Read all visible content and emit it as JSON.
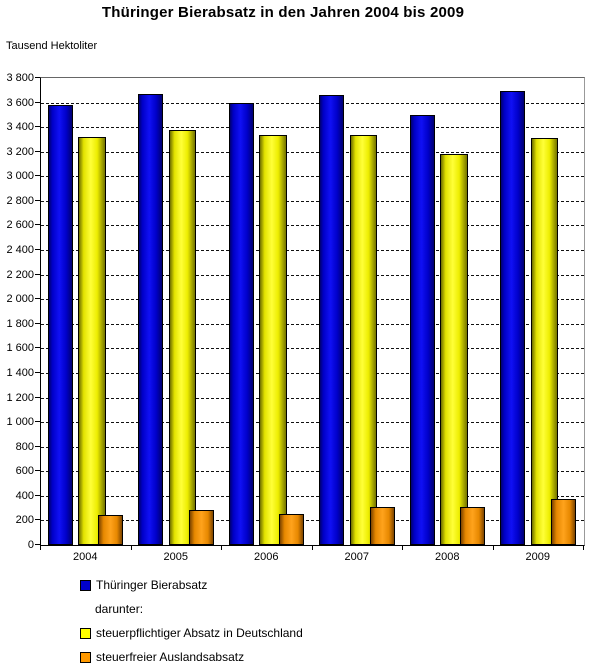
{
  "page": {
    "title": "Thüringer Bierabsatz in den Jahren 2004 bis 2009",
    "unit_label": "Tausend Hektoliter"
  },
  "chart_data": {
    "type": "bar",
    "title": "Thüringer Bierabsatz in den Jahren 2004 bis 2009",
    "ylabel": "Tausend Hektoliter",
    "xlabel": "",
    "categories": [
      "2004",
      "2005",
      "2006",
      "2007",
      "2008",
      "2009"
    ],
    "series": [
      {
        "name": "Thüringer Bierabsatz",
        "color": "#0000cc",
        "values": [
          3580,
          3670,
          3600,
          3660,
          3500,
          3695
        ]
      },
      {
        "name": "steuerpflichtiger Absatz in Deutschland",
        "color": "#ffff00",
        "values": [
          3320,
          3375,
          3340,
          3340,
          3180,
          3310
        ]
      },
      {
        "name": "steuerfreier Auslandsabsatz",
        "color": "#ff9900",
        "values": [
          245,
          285,
          255,
          310,
          310,
          375
        ]
      }
    ],
    "ylim": [
      0,
      3800
    ],
    "ytick_step": 200,
    "ytick_labels": [
      "0",
      "200",
      "400",
      "600",
      "800",
      "1 000",
      "1 200",
      "1 400",
      "1 600",
      "1 800",
      "2 000",
      "2 200",
      "2 400",
      "2 600",
      "2 800",
      "3 000",
      "3 200",
      "3 400",
      "3 600",
      "3 800"
    ],
    "grid": true,
    "legend_position": "bottom",
    "legend_note": "darunter:"
  },
  "legend": {
    "items": [
      {
        "label": "Thüringer Bierabsatz",
        "color": "#0000cc"
      },
      {
        "label": "steuerpflichtiger Absatz in Deutschland",
        "color": "#ffff00"
      },
      {
        "label": "steuerfreier Auslandsabsatz",
        "color": "#ff9900"
      }
    ],
    "note": "darunter:"
  }
}
